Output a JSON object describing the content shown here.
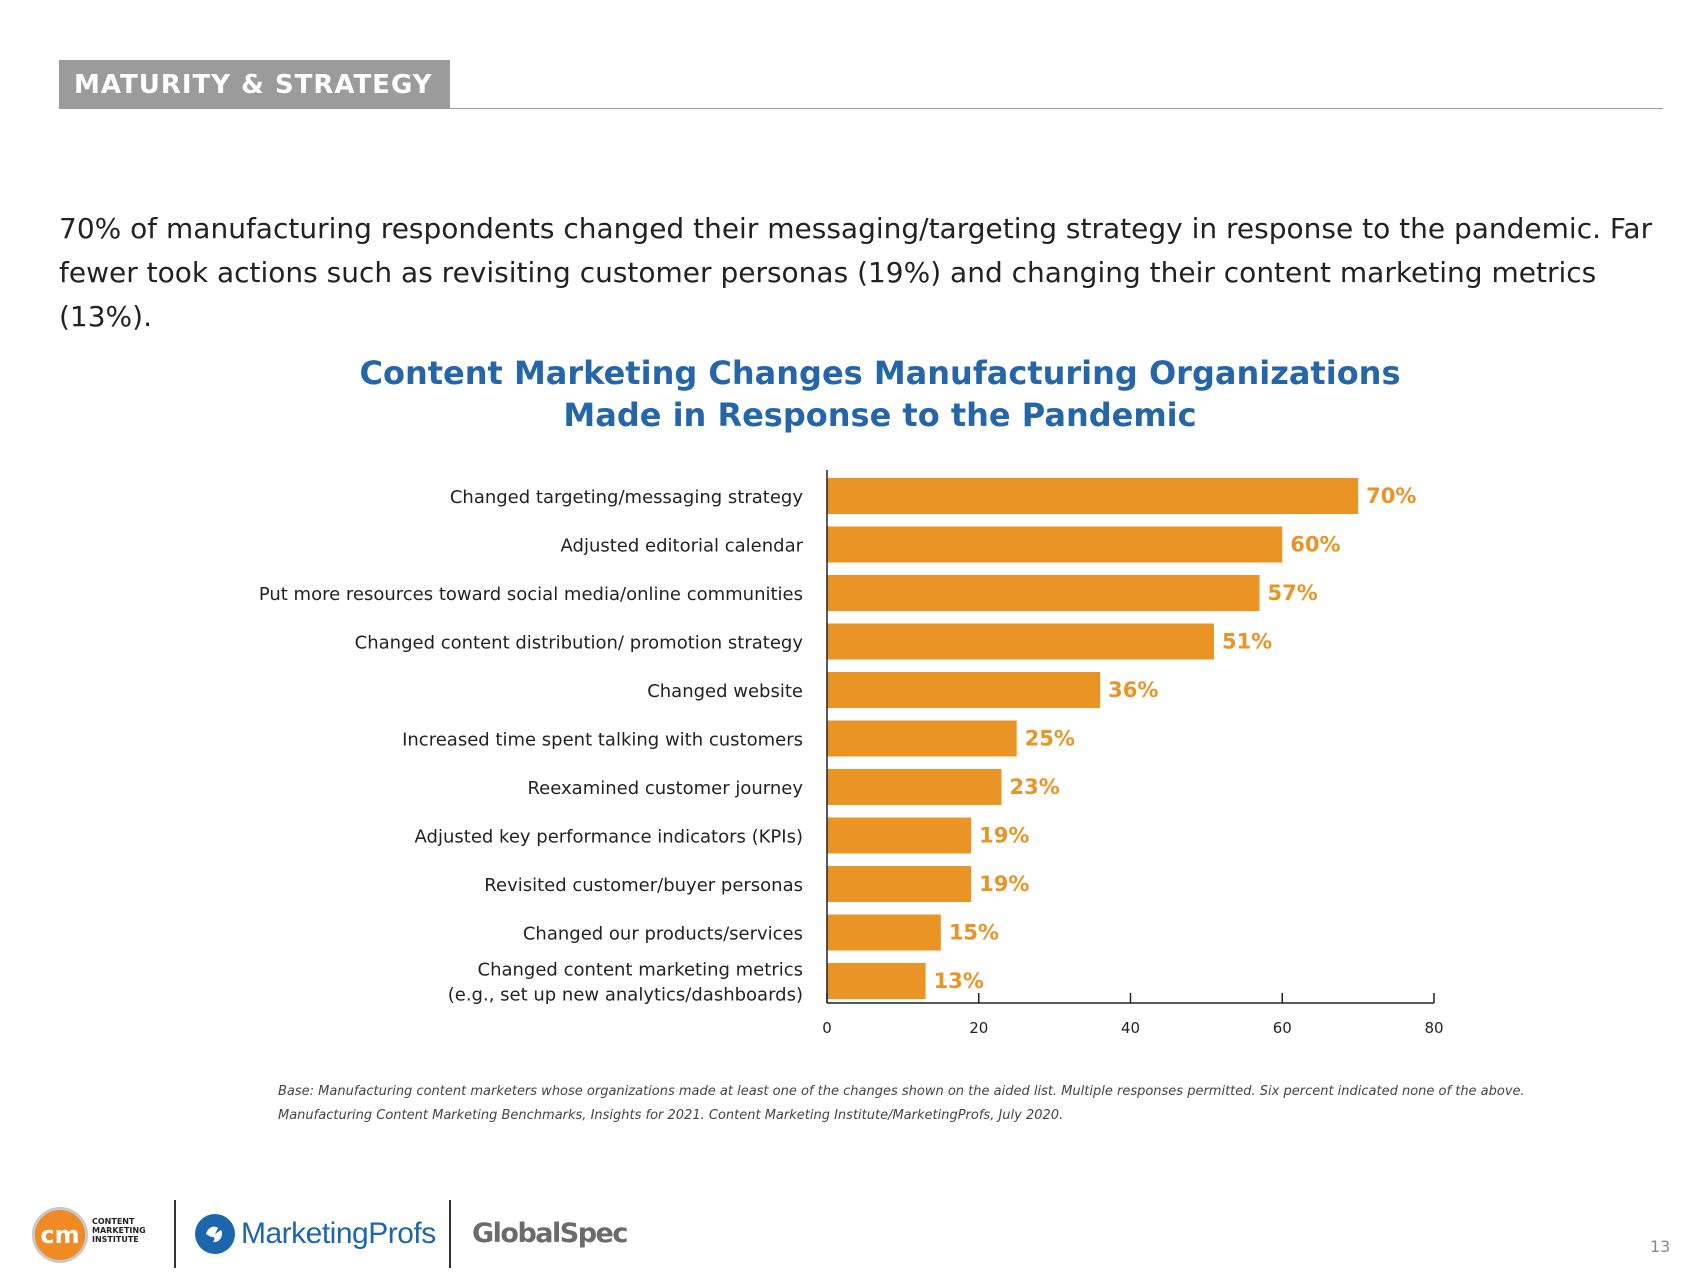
{
  "section": {
    "tag": "MATURITY & STRATEGY"
  },
  "intro": {
    "line1": "70% of manufacturing respondents changed their messaging/targeting strategy in response to the pandemic. Far",
    "line2": "fewer took actions such as revisiting customer personas (19%) and changing their content marketing metrics (13%)."
  },
  "colors": {
    "accent": "#2566a9",
    "bar": "#ea9426",
    "label": "#ea9426",
    "section_tag": "#9b9b9b"
  },
  "chart_data": {
    "type": "bar",
    "orientation": "horizontal",
    "title_line1": "Content Marketing Changes Manufacturing Organizations",
    "title_line2": "Made in Response to the Pandemic",
    "xlabel": "",
    "ylabel": "",
    "xlim": [
      0,
      80
    ],
    "xticks": [
      0,
      20,
      40,
      60,
      80
    ],
    "grid": false,
    "legend": "none",
    "categories": [
      [
        "Changed targeting/messaging strategy"
      ],
      [
        "Adjusted editorial calendar"
      ],
      [
        "Put more resources toward social media/online communities"
      ],
      [
        "Changed content distribution/ promotion strategy"
      ],
      [
        "Changed website"
      ],
      [
        "Increased time spent talking with customers"
      ],
      [
        "Reexamined customer journey"
      ],
      [
        "Adjusted key performance indicators (KPIs)"
      ],
      [
        "Revisited customer/buyer personas"
      ],
      [
        "Changed our products/services"
      ],
      [
        "Changed content marketing metrics",
        "(e.g., set up new analytics/dashboards)"
      ]
    ],
    "values": [
      70,
      60,
      57,
      51,
      36,
      25,
      23,
      19,
      19,
      15,
      13
    ],
    "value_labels": [
      "70%",
      "60%",
      "57%",
      "51%",
      "36%",
      "25%",
      "23%",
      "19%",
      "19%",
      "15%",
      "13%"
    ]
  },
  "footnote": {
    "line1": "Base: Manufacturing content marketers whose organizations made at least one of the changes shown on the aided list. Multiple responses permitted. Six percent indicated none of the above.",
    "line2": "Manufacturing Content Marketing Benchmarks, Insights for 2021. Content Marketing Institute/MarketingProfs, July 2020."
  },
  "footer": {
    "cmi_logo_mark": "cm",
    "cmi_logo_text": [
      "CONTENT",
      "MARKETING",
      "INSTITUTE"
    ],
    "mp_logo_text": "MarketingProfs",
    "gs_logo_text": "GlobalSpec",
    "page_number": "13"
  }
}
